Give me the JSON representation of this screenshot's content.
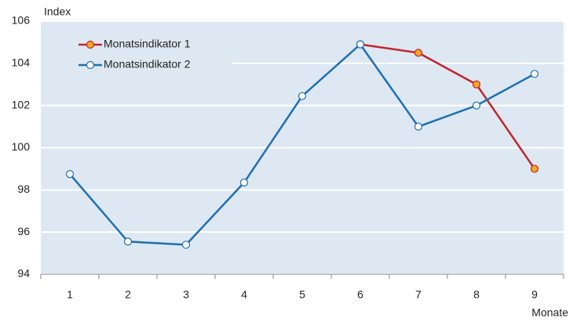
{
  "chart_data": {
    "type": "line",
    "y_label": "Index",
    "x_label": "Monate",
    "categories": [
      "1",
      "2",
      "3",
      "4",
      "5",
      "6",
      "7",
      "8",
      "9"
    ],
    "series": [
      {
        "name": "Monatsindikator 1",
        "color": "#c0272d",
        "marker_color": "#f5a623",
        "values": [
          null,
          null,
          null,
          null,
          null,
          104.9,
          104.5,
          103.0,
          99.0
        ]
      },
      {
        "name": "Monatsindikator 2",
        "color": "#1f6fb2",
        "marker_color": "#ffffff",
        "values": [
          98.75,
          95.55,
          95.4,
          98.35,
          102.45,
          104.9,
          101.0,
          102.0,
          103.5
        ]
      }
    ],
    "ylim": [
      94,
      106
    ],
    "yticks": [
      94,
      96,
      98,
      100,
      102,
      104,
      106
    ],
    "grid": true,
    "legend": "top-left"
  }
}
